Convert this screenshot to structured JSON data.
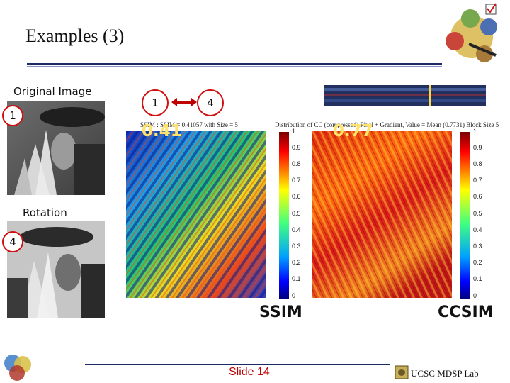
{
  "slide": {
    "title": "Examples (3)",
    "slide_number": "Slide 14",
    "footer_lab": "UCSC MDSP Lab"
  },
  "left_panel": {
    "original_label": "Original Image",
    "rotation_label": "Rotation",
    "marker_1": "1",
    "marker_4": "4"
  },
  "compare": {
    "from": "1",
    "to": "4"
  },
  "maps": {
    "ssim": {
      "caption": "SSIM : SSIM = 0.41057 with Size = 5",
      "score": "0.41",
      "label": "SSIM"
    },
    "ccsim": {
      "caption": "Distribution of CC (compressed) Pixel + Gradient, Value = Mean (0.7731) Block Size 5",
      "score": "0.77",
      "label": "CCSIM"
    },
    "colorbar_ticks": [
      "1",
      "0.9",
      "0.8",
      "0.7",
      "0.6",
      "0.5",
      "0.4",
      "0.3",
      "0.2",
      "0.1",
      "0"
    ]
  },
  "colors": {
    "marker_border": "#d01010",
    "title_rule": "#1c2a66",
    "score_text": "#ffe36a",
    "slide_number": "#c00000"
  }
}
